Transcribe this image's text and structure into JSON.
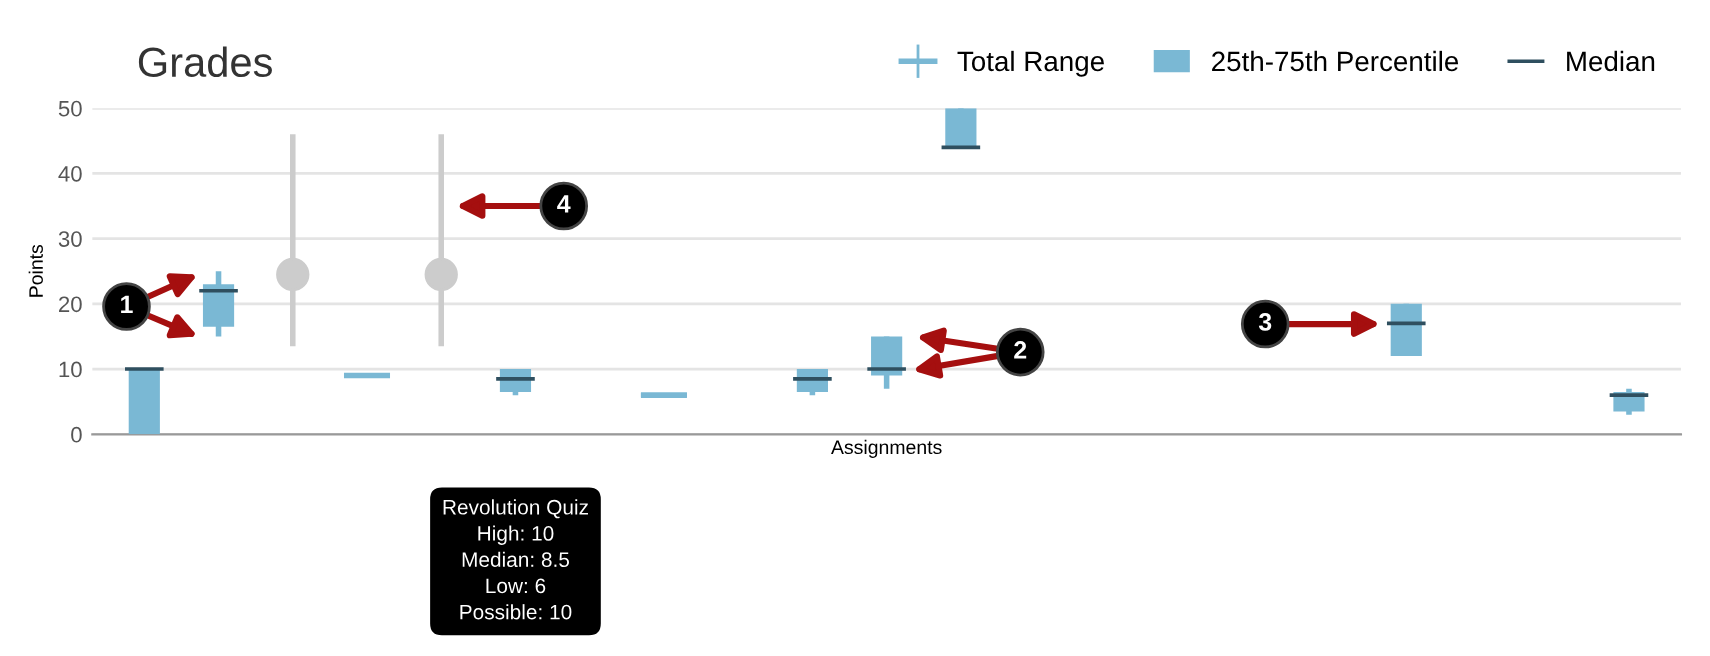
{
  "chart_data": {
    "type": "box",
    "title": "Grades",
    "xlabel": "Assignments",
    "ylabel": "Points",
    "categories": [
      null,
      null,
      null,
      null,
      null,
      null,
      null,
      null,
      null,
      null,
      null,
      null,
      null,
      null,
      null,
      null,
      null,
      null,
      null,
      null,
      null
    ],
    "series": [
      {
        "name": "25th-75th Percentile",
        "color": "#7ab8d4",
        "boxes": [
          {
            "low": 0,
            "q1": 0,
            "median": 10,
            "q3": 10,
            "high": 10
          },
          {
            "low": 15,
            "q1": 16.5,
            "median": 22,
            "q3": 23,
            "high": 25
          },
          null,
          {
            "low": 9,
            "q1": 9,
            "median": 9,
            "q3": 9,
            "high": 9
          },
          null,
          {
            "low": 6,
            "q1": 6.5,
            "median": 8.5,
            "q3": 10,
            "high": 10
          },
          null,
          {
            "low": 6,
            "q1": 6,
            "median": 6,
            "q3": 6,
            "high": 6
          },
          null,
          {
            "low": 6,
            "q1": 6.5,
            "median": 8.5,
            "q3": 10,
            "high": 10
          },
          {
            "low": 7,
            "q1": 9,
            "median": 10,
            "q3": 15,
            "high": 15
          },
          {
            "low": 44,
            "q1": 44,
            "median": 44,
            "q3": 50,
            "high": 50
          },
          null,
          null,
          null,
          null,
          null,
          {
            "low": 12,
            "q1": 12,
            "median": 17,
            "q3": 20,
            "high": 20
          },
          null,
          null,
          {
            "low": 3,
            "q1": 3.5,
            "median": 6,
            "q3": 6.5,
            "high": 7
          }
        ]
      },
      {
        "type": "scatter",
        "color": "#cccccc",
        "marker": "circle",
        "values": [
          null,
          null,
          24.5,
          null,
          24.5,
          null,
          null,
          null,
          null,
          null,
          null,
          null,
          null,
          null,
          null,
          null,
          null,
          null,
          null,
          null,
          null
        ],
        "errors": [
          null,
          null,
          [
            13.5,
            46
          ],
          null,
          [
            13.5,
            46
          ],
          null,
          null,
          null,
          null,
          null,
          null,
          null,
          null,
          null,
          null,
          null,
          null,
          null,
          null,
          null,
          null
        ]
      }
    ],
    "annotations": [
      "Total Range",
      "Median",
      "Revolution Quiz\nHigh: 10\nMedian: 8.5\nLow: 6\nPossible: 10",
      "1",
      "2",
      "3",
      "4"
    ],
    "ylim": [
      0,
      50
    ],
    "yticks": [
      0,
      10,
      20,
      30,
      40,
      50
    ],
    "grid": "y",
    "legend": "top right",
    "tick_labels": "y"
  }
}
